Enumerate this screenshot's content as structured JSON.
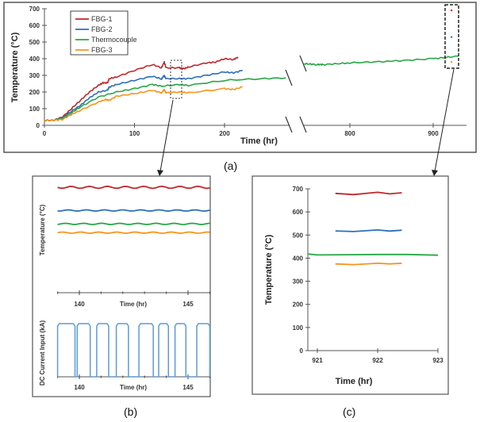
{
  "colors": {
    "FBG-1": "#c0272d",
    "FBG-2": "#2e6fb7",
    "Thermocouple": "#27a745",
    "FBG-3": "#f7941d",
    "current": "#5b9bd5"
  },
  "chart_data": [
    {
      "panel": "(a)",
      "type": "line",
      "xlabel": "Time (hr)",
      "ylabel": "Temperature (°C)",
      "ylim": [
        0,
        700
      ],
      "yticks": [
        "0",
        "100",
        "200",
        "300",
        "400",
        "500",
        "600",
        "700"
      ],
      "xticks": [
        "0",
        "100",
        "200",
        "800",
        "900"
      ],
      "axis_break": [
        270,
        745
      ],
      "legend_placement": "top-left",
      "series": [
        {
          "name": "FBG-1",
          "x": [
            0,
            10,
            20,
            30,
            40,
            50,
            60,
            65,
            70,
            72,
            80,
            100,
            120,
            130,
            133,
            135,
            150,
            155,
            160,
            180,
            190,
            200,
            210,
            215
          ],
          "y": [
            30,
            30,
            50,
            100,
            150,
            200,
            240,
            255,
            255,
            280,
            290,
            330,
            365,
            345,
            380,
            345,
            345,
            340,
            350,
            375,
            380,
            400,
            395,
            410
          ]
        },
        {
          "name": "FBG-2",
          "x": [
            0,
            10,
            20,
            30,
            40,
            50,
            60,
            70,
            72,
            80,
            100,
            120,
            130,
            133,
            135,
            150,
            160,
            180,
            200,
            210,
            220
          ],
          "y": [
            30,
            30,
            45,
            85,
            120,
            165,
            200,
            210,
            230,
            245,
            270,
            295,
            278,
            300,
            280,
            280,
            280,
            300,
            320,
            315,
            330
          ]
        },
        {
          "name": "Thermocouple",
          "x": [
            0,
            10,
            20,
            30,
            40,
            60,
            80,
            100,
            120,
            130,
            150,
            160,
            200,
            240,
            268,
            745,
            760,
            770,
            800,
            850,
            900,
            930
          ],
          "y": [
            30,
            30,
            40,
            75,
            110,
            170,
            200,
            220,
            245,
            235,
            245,
            240,
            270,
            280,
            285,
            370,
            365,
            365,
            375,
            385,
            400,
            415
          ]
        },
        {
          "name": "FBG-3",
          "x": [
            0,
            10,
            20,
            30,
            40,
            60,
            68,
            72,
            80,
            100,
            120,
            130,
            133,
            135,
            150,
            160,
            200,
            210,
            220
          ],
          "y": [
            30,
            30,
            35,
            65,
            90,
            140,
            155,
            150,
            175,
            190,
            210,
            195,
            215,
            195,
            200,
            195,
            220,
            215,
            230
          ]
        }
      ],
      "zoom_marker_points": [
        {
          "name": "FBG-1",
          "x": 922,
          "y": 690
        },
        {
          "name": "FBG-2",
          "x": 922,
          "y": 530
        },
        {
          "name": "FBG-3",
          "x": 922,
          "y": 380
        }
      ]
    },
    {
      "panel": "(b)",
      "type": "line",
      "subplots": [
        {
          "ylabel": "Temperature (°C)",
          "xlabel": "Time (hr)",
          "xlim": [
            139,
            146
          ],
          "xticks": [
            "140",
            "145"
          ],
          "series": [
            {
              "name": "FBG-1",
              "y": 345
            },
            {
              "name": "FBG-2",
              "y": 271
            },
            {
              "name": "Thermocouple",
              "y": 228
            },
            {
              "name": "FBG-3",
              "y": 200
            }
          ]
        },
        {
          "ylabel": "DC Current Input (kA)",
          "xlabel": "Time (hr)",
          "xlim": [
            139,
            146
          ],
          "xticks": [
            "140",
            "145"
          ],
          "on_intervals": [
            [
              139.0,
              139.8
            ],
            [
              139.9,
              140.5
            ],
            [
              140.8,
              141.35
            ],
            [
              141.7,
              142.26
            ],
            [
              142.74,
              143.4
            ],
            [
              143.65,
              144.1
            ],
            [
              144.4,
              144.9
            ],
            [
              145.4,
              146.0
            ]
          ]
        }
      ]
    },
    {
      "panel": "(c)",
      "type": "line",
      "xlabel": "Time (hr)",
      "ylabel": "Temperature (°C)",
      "xlim": [
        920.84,
        923
      ],
      "ylim": [
        0,
        700
      ],
      "xticks": [
        "921",
        "922",
        "923"
      ],
      "yticks": [
        "0",
        "100",
        "200",
        "300",
        "400",
        "500",
        "600",
        "700"
      ],
      "series": [
        {
          "name": "FBG-1",
          "x": [
            921.3,
            921.6,
            922.0,
            922.2,
            922.4
          ],
          "y": [
            680,
            675,
            685,
            678,
            683
          ]
        },
        {
          "name": "FBG-2",
          "x": [
            921.3,
            921.6,
            922.0,
            922.2,
            922.4
          ],
          "y": [
            518,
            515,
            522,
            517,
            521
          ]
        },
        {
          "name": "Thermocouple",
          "x": [
            920.84,
            921.0,
            921.5,
            922.0,
            922.5,
            923.0
          ],
          "y": [
            418,
            414,
            415,
            416,
            416,
            413
          ]
        },
        {
          "name": "FBG-3",
          "x": [
            921.3,
            921.6,
            922.0,
            922.2,
            922.4
          ],
          "y": [
            375,
            372,
            378,
            375,
            378
          ]
        }
      ]
    }
  ]
}
